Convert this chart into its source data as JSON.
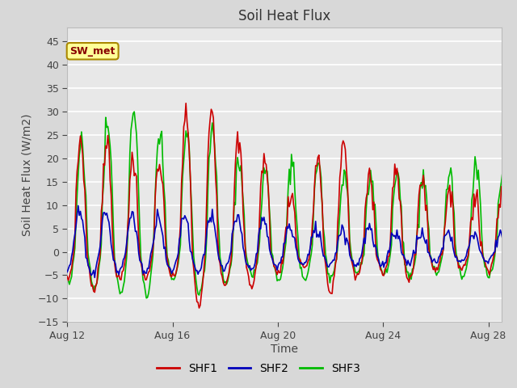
{
  "title": "Soil Heat Flux",
  "xlabel": "Time",
  "ylabel": "Soil Heat Flux (W/m2)",
  "ylim": [
    -15,
    48
  ],
  "yticks": [
    -15,
    -10,
    -5,
    0,
    5,
    10,
    15,
    20,
    25,
    30,
    35,
    40,
    45
  ],
  "bg_outer": "#d8d8d8",
  "bg_inner": "#e8e8e8",
  "grid_color": "#ffffff",
  "shf1_color": "#cc0000",
  "shf2_color": "#0000bb",
  "shf3_color": "#00bb00",
  "legend_label1": "SHF1",
  "legend_label2": "SHF2",
  "legend_label3": "SHF3",
  "annotation_text": "SW_met",
  "annotation_bg": "#ffff99",
  "annotation_border": "#aa8800",
  "annotation_text_color": "#880000",
  "start_day": 12,
  "end_day": 30,
  "xtick_days": [
    12,
    16,
    20,
    24,
    28
  ],
  "xtick_labels": [
    "Aug 12",
    "Aug 16",
    "Aug 20",
    "Aug 24",
    "Aug 28"
  ],
  "n_points": 432
}
